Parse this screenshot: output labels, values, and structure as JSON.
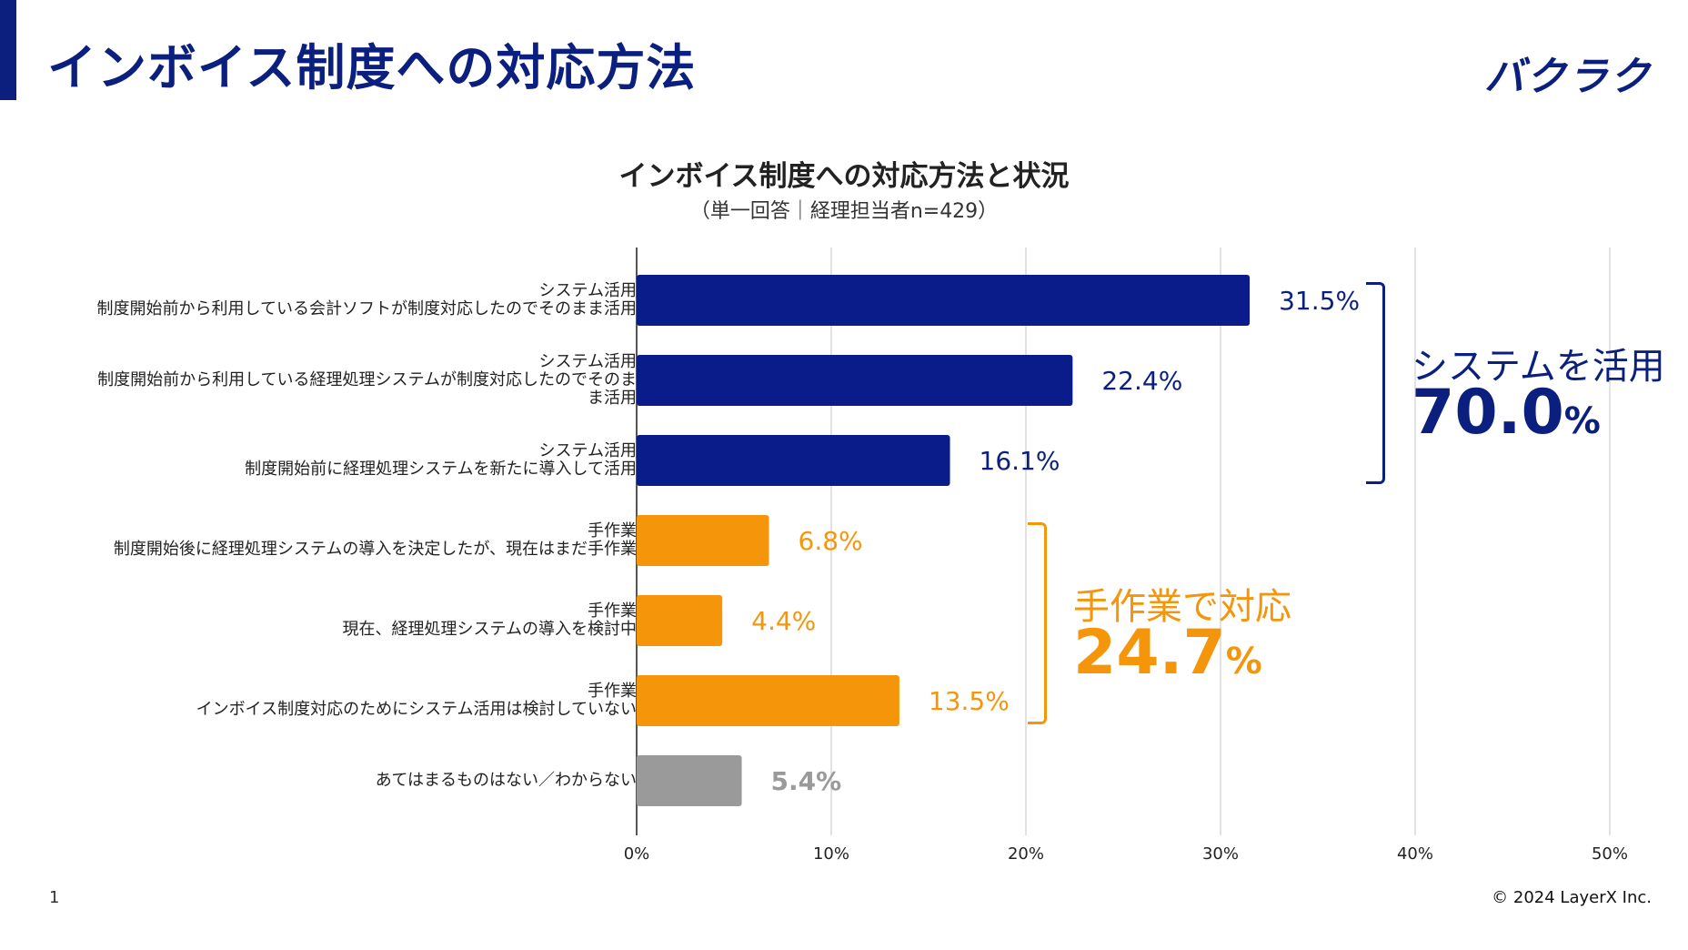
{
  "slide": {
    "title": "インボイス制度への対応方法",
    "logo": "バクラク",
    "page_number": "1",
    "copyright": "© 2024 LayerX Inc."
  },
  "colors": {
    "navy": "#0b1f7e",
    "bar_navy": "#0a1b8a",
    "orange": "#f5960a",
    "gray": "#9a9a9a",
    "gray_text": "#9a9a9a",
    "grid": "#d9d9d9"
  },
  "groups": {
    "system": {
      "label": "システムを活用",
      "total": "70.0",
      "unit": "%"
    },
    "manual": {
      "label": "手作業で対応",
      "total": "24.7",
      "unit": "%"
    }
  },
  "chart_data": {
    "type": "bar",
    "orientation": "horizontal",
    "title": "インボイス制度への対応方法と状況",
    "subtitle": "（単一回答｜経理担当者n=429）",
    "xlim": [
      0,
      50
    ],
    "xticks": [
      0,
      10,
      20,
      30,
      40,
      50
    ],
    "xtick_labels": [
      "0%",
      "10%",
      "20%",
      "30%",
      "40%",
      "50%"
    ],
    "grid": true,
    "categories": [
      {
        "lines": [
          "システム活用",
          "制度開始前から利用している会計ソフトが制度対応したのでそのまま活用"
        ],
        "value": 31.5,
        "label": "31.5%",
        "group": "system"
      },
      {
        "lines": [
          "システム活用",
          "制度開始前から利用している経理処理システムが制度対応したのでそのま",
          "ま活用"
        ],
        "value": 22.4,
        "label": "22.4%",
        "group": "system"
      },
      {
        "lines": [
          "システム活用",
          "制度開始前に経理処理システムを新たに導入して活用"
        ],
        "value": 16.1,
        "label": "16.1%",
        "group": "system"
      },
      {
        "lines": [
          "手作業",
          "制度開始後に経理処理システムの導入を決定したが、現在はまだ手作業"
        ],
        "value": 6.8,
        "label": "6.8%",
        "group": "manual"
      },
      {
        "lines": [
          "手作業",
          "現在、経理処理システムの導入を検討中"
        ],
        "value": 4.4,
        "label": "4.4%",
        "group": "manual"
      },
      {
        "lines": [
          "手作業",
          "インボイス制度対応のためにシステム活用は検討していない"
        ],
        "value": 13.5,
        "label": "13.5%",
        "group": "manual"
      },
      {
        "lines": [
          "あてはまるものはない／わからない"
        ],
        "value": 5.4,
        "label": "5.4%",
        "group": "other"
      }
    ]
  }
}
